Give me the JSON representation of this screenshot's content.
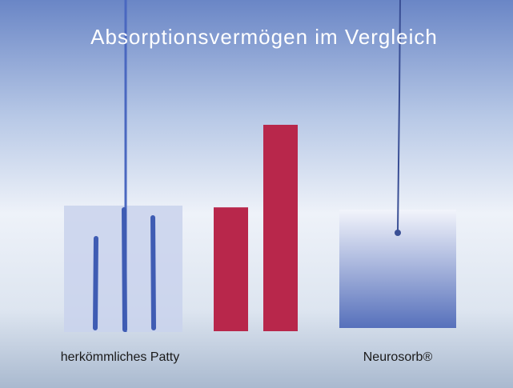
{
  "chart_data": {
    "type": "bar",
    "title": "Absorptionsvermögen im Vergleich",
    "categories": [
      "herkömmliches Patty",
      "Neurosorb®"
    ],
    "values": [
      60,
      100
    ],
    "color": "#b8274b",
    "ylim": [
      0,
      100
    ]
  }
}
